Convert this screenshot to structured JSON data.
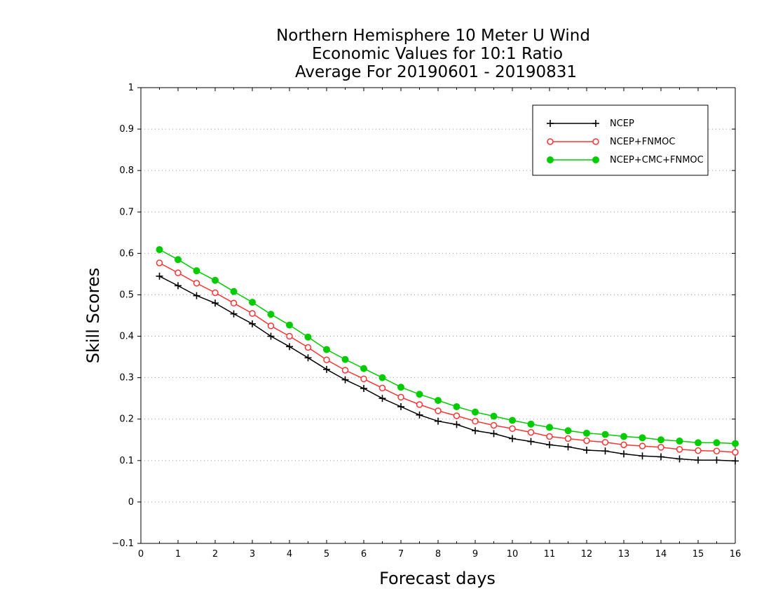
{
  "chart_data": {
    "type": "line",
    "title_lines": [
      "Northern Hemisphere 10 Meter U Wind",
      "Economic Values for 10:1 Ratio",
      "Average For 20190601 - 20190831"
    ],
    "xlabel": "Forecast days",
    "ylabel": "Skill Scores",
    "xlim": [
      0,
      16
    ],
    "ylim": [
      -0.1,
      1
    ],
    "x_ticks": [
      "0",
      "1",
      "2",
      "3",
      "4",
      "5",
      "6",
      "7",
      "8",
      "9",
      "10",
      "11",
      "12",
      "13",
      "14",
      "15",
      "16"
    ],
    "y_ticks": [
      "−0.1",
      "0",
      "0.1",
      "0.2",
      "0.3",
      "0.4",
      "0.5",
      "0.6",
      "0.7",
      "0.8",
      "0.9",
      "1"
    ],
    "grid": "horizontal dotted",
    "legend_position": "top-right",
    "x": [
      0.5,
      1,
      1.5,
      2,
      2.5,
      3,
      3.5,
      4,
      4.5,
      5,
      5.5,
      6,
      6.5,
      7,
      7.5,
      8,
      8.5,
      9,
      9.5,
      10,
      10.5,
      11,
      11.5,
      12,
      12.5,
      13,
      13.5,
      14,
      14.5,
      15,
      15.5,
      16
    ],
    "series": [
      {
        "name": "NCEP",
        "color": "#000000",
        "marker": "plus",
        "values": [
          0.545,
          0.522,
          0.498,
          0.48,
          0.454,
          0.43,
          0.4,
          0.375,
          0.348,
          0.32,
          0.295,
          0.274,
          0.25,
          0.23,
          0.21,
          0.195,
          0.187,
          0.172,
          0.165,
          0.153,
          0.146,
          0.138,
          0.133,
          0.125,
          0.123,
          0.116,
          0.111,
          0.109,
          0.104,
          0.101,
          0.101,
          0.099
        ]
      },
      {
        "name": "NCEP+FNMOC",
        "color": "#ff3333",
        "marker": "open-circle",
        "values": [
          0.577,
          0.553,
          0.528,
          0.505,
          0.48,
          0.455,
          0.425,
          0.4,
          0.373,
          0.343,
          0.318,
          0.297,
          0.275,
          0.253,
          0.235,
          0.22,
          0.208,
          0.195,
          0.185,
          0.177,
          0.168,
          0.158,
          0.153,
          0.148,
          0.144,
          0.138,
          0.135,
          0.132,
          0.127,
          0.124,
          0.123,
          0.12
        ]
      },
      {
        "name": "NCEP+CMC+FNMOC",
        "color": "#00cc00",
        "marker": "filled-circle",
        "values": [
          0.609,
          0.585,
          0.558,
          0.535,
          0.508,
          0.482,
          0.453,
          0.427,
          0.398,
          0.368,
          0.344,
          0.322,
          0.3,
          0.277,
          0.26,
          0.245,
          0.23,
          0.217,
          0.207,
          0.197,
          0.188,
          0.18,
          0.172,
          0.166,
          0.163,
          0.158,
          0.155,
          0.15,
          0.147,
          0.143,
          0.143,
          0.141
        ]
      }
    ]
  }
}
